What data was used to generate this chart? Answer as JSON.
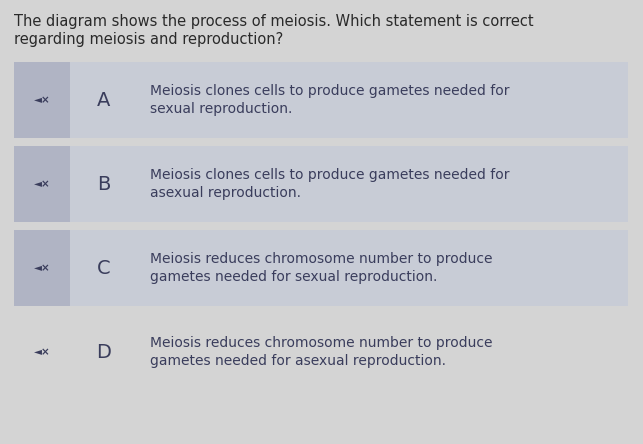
{
  "bg_color": "#d4d4d4",
  "question_text_line1": "The diagram shows the process of meiosis. Which statement is correct",
  "question_text_line2": "regarding meiosis and reproduction?",
  "question_fontsize": 10.5,
  "question_color": "#2a2a2a",
  "options": [
    {
      "label": "A",
      "line1": "Meiosis clones cells to produce gametes needed for",
      "line2": "sexual reproduction.",
      "has_box": true
    },
    {
      "label": "B",
      "line1": "Meiosis clones cells to produce gametes needed for",
      "line2": "asexual reproduction.",
      "has_box": true
    },
    {
      "label": "C",
      "line1": "Meiosis reduces chromosome number to produce",
      "line2": "gametes needed for sexual reproduction.",
      "has_box": true
    },
    {
      "label": "D",
      "line1": "Meiosis reduces chromosome number to produce",
      "line2": "gametes needed for asexual reproduction.",
      "has_box": false
    }
  ],
  "option_bg_color": "#c8ccd6",
  "icon_bg_color": "#b0b4c4",
  "option_text_color": "#3a3d5c",
  "label_fontsize": 14,
  "text_fontsize": 10.0,
  "icon_fontsize": 7.5,
  "icon_color": "#3a3d5c"
}
